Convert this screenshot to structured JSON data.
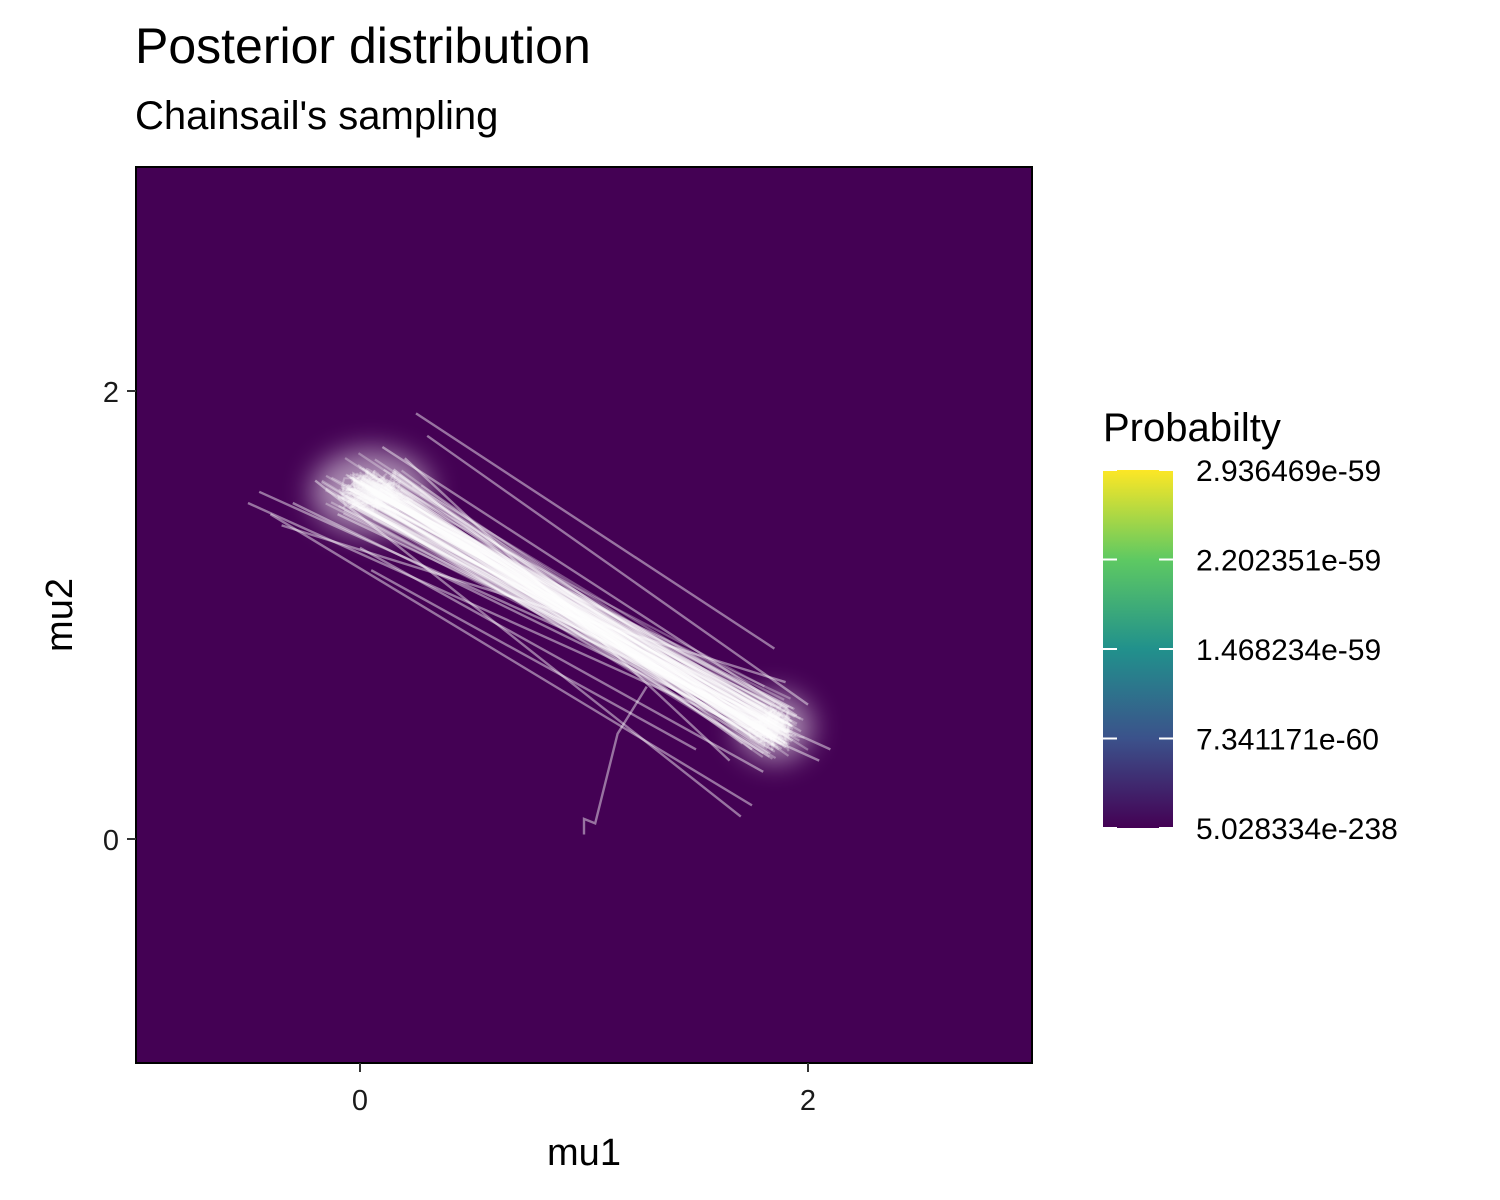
{
  "chart_data": {
    "type": "heatmap",
    "title": "Posterior distribution",
    "subtitle": "Chainsail's sampling",
    "xlabel": "mu1",
    "ylabel": "mu2",
    "xlim": [
      -1.0,
      3.0
    ],
    "ylim": [
      -1.0,
      3.0
    ],
    "x_ticks": [
      0,
      2
    ],
    "y_ticks": [
      0,
      2
    ],
    "x_tick_labels": [
      "0",
      "2"
    ],
    "y_tick_labels": [
      "0",
      "2"
    ],
    "grid": false,
    "background_color": "#440154",
    "trace_color": "#ffffff",
    "colorscale": "viridis",
    "colorscale_stops": [
      "#440154",
      "#3b528b",
      "#21918c",
      "#5ec962",
      "#fde725"
    ],
    "legend": {
      "title": "Probabilty",
      "placement": "right",
      "labels": [
        "2.936469e-59",
        "2.202351e-59",
        "1.468234e-59",
        "7.341171e-60",
        "5.028334e-238"
      ],
      "values": [
        2.936469e-59,
        2.202351e-59,
        1.468234e-59,
        7.341171e-60,
        5.028334e-238
      ]
    },
    "modes": [
      {
        "name": "",
        "x": 0.05,
        "y": 1.55
      },
      {
        "name": "",
        "x": 1.85,
        "y": 0.5
      }
    ],
    "trace_start": {
      "x": 1.0,
      "y": 0.02
    },
    "trace_jumps": [
      [
        0.25,
        1.9,
        1.85,
        0.85
      ],
      [
        -0.45,
        1.55,
        2.1,
        0.4
      ],
      [
        -0.5,
        1.5,
        2.05,
        0.35
      ],
      [
        -0.35,
        1.4,
        1.9,
        0.7
      ],
      [
        -0.4,
        1.45,
        1.75,
        0.15
      ],
      [
        -0.2,
        1.6,
        1.7,
        0.1
      ],
      [
        0.0,
        1.3,
        1.8,
        0.3
      ],
      [
        0.1,
        1.75,
        1.95,
        0.55
      ],
      [
        0.2,
        1.7,
        1.65,
        0.35
      ],
      [
        0.05,
        1.2,
        1.5,
        0.4
      ],
      [
        0.3,
        1.8,
        2.0,
        0.6
      ],
      [
        -0.3,
        1.5,
        1.85,
        0.45
      ],
      [
        0.15,
        1.65,
        1.75,
        0.4
      ],
      [
        -0.1,
        1.45,
        1.9,
        0.5
      ]
    ]
  }
}
